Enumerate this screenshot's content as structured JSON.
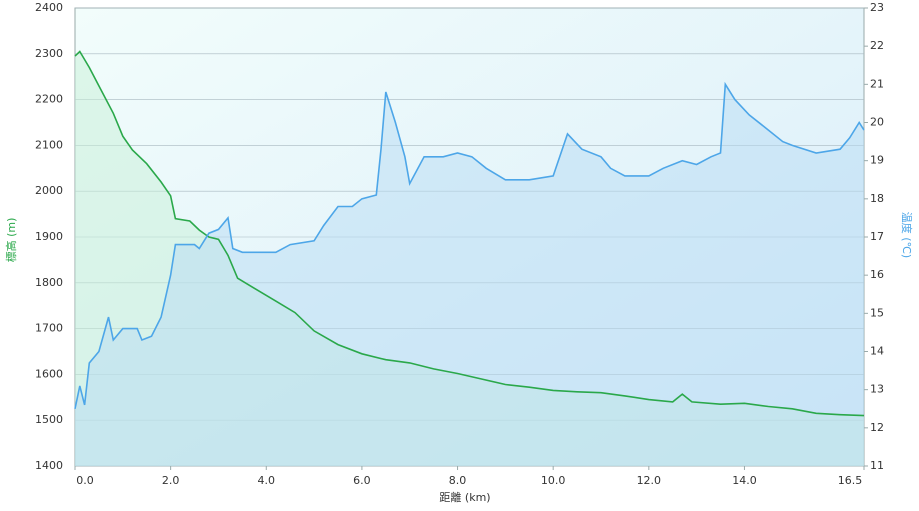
{
  "chart_data": {
    "type": "line",
    "x_label": "距離 (km)",
    "y_label": "標高 (m)",
    "y2_label": "温度 (℃)",
    "xlim": [
      0,
      16.5
    ],
    "xticks": [
      {
        "value": 0,
        "label": "0.0"
      },
      {
        "value": 2,
        "label": "2.0"
      },
      {
        "value": 4,
        "label": "4.0"
      },
      {
        "value": 6,
        "label": "6.0"
      },
      {
        "value": 8,
        "label": "8.0"
      },
      {
        "value": 10,
        "label": "10.0"
      },
      {
        "value": 12,
        "label": "12.0"
      },
      {
        "value": 14,
        "label": "14.0"
      },
      16.5
    ],
    "ylim": [
      1400,
      2400
    ],
    "yticks": [
      1400,
      1500,
      1600,
      1700,
      1800,
      1900,
      2000,
      2100,
      2200,
      2300,
      2400
    ],
    "y2lim": [
      11,
      23
    ],
    "y2ticks": [
      11,
      12,
      13,
      14,
      15,
      16,
      17,
      18,
      19,
      20,
      21,
      22,
      23
    ],
    "grid": true,
    "series": [
      {
        "name": "標高",
        "color": "#2aa84a",
        "axis": "y",
        "fill": "#c8f0d8",
        "x": [
          0,
          0.1,
          0.3,
          0.5,
          0.8,
          1.0,
          1.2,
          1.5,
          1.8,
          2.0,
          2.1,
          2.4,
          2.6,
          2.8,
          3.0,
          3.2,
          3.4,
          3.8,
          4.2,
          4.6,
          5.0,
          5.5,
          6.0,
          6.5,
          7.0,
          7.5,
          8.0,
          8.5,
          9.0,
          9.5,
          10.0,
          10.5,
          11.0,
          11.5,
          12.0,
          12.5,
          12.7,
          12.9,
          13.5,
          14.0,
          14.5,
          15.0,
          15.5,
          16.0,
          16.5
        ],
        "values": [
          2295,
          2305,
          2270,
          2230,
          2170,
          2120,
          2090,
          2060,
          2020,
          1990,
          1940,
          1935,
          1915,
          1900,
          1895,
          1860,
          1810,
          1785,
          1760,
          1735,
          1695,
          1665,
          1645,
          1632,
          1625,
          1612,
          1602,
          1590,
          1578,
          1572,
          1565,
          1562,
          1560,
          1553,
          1545,
          1540,
          1557,
          1540,
          1535,
          1537,
          1530,
          1525,
          1515,
          1512,
          1510
        ]
      },
      {
        "name": "温度",
        "color": "#4da6e8",
        "axis": "y2",
        "fill": "#b8dcf4",
        "x": [
          0,
          0.1,
          0.2,
          0.3,
          0.5,
          0.7,
          0.8,
          1.0,
          1.3,
          1.4,
          1.6,
          1.8,
          2.0,
          2.1,
          2.5,
          2.6,
          2.8,
          3.0,
          3.2,
          3.3,
          3.5,
          4.0,
          4.2,
          4.5,
          5.0,
          5.2,
          5.5,
          5.8,
          6.0,
          6.3,
          6.4,
          6.5,
          6.7,
          6.9,
          7.0,
          7.3,
          7.7,
          8.0,
          8.3,
          8.6,
          9.0,
          9.5,
          10.0,
          10.3,
          10.6,
          11.0,
          11.2,
          11.5,
          12.0,
          12.3,
          12.7,
          13.0,
          13.3,
          13.5,
          13.6,
          13.8,
          14.1,
          14.5,
          14.8,
          15.0,
          15.5,
          16.0,
          16.2,
          16.4,
          16.5
        ],
        "values": [
          12.5,
          13.1,
          12.6,
          13.7,
          14.0,
          14.9,
          14.3,
          14.6,
          14.6,
          14.3,
          14.4,
          14.9,
          16.0,
          16.8,
          16.8,
          16.7,
          17.1,
          17.2,
          17.5,
          16.7,
          16.6,
          16.6,
          16.6,
          16.8,
          16.9,
          17.3,
          17.8,
          17.8,
          18.0,
          18.1,
          19.3,
          20.8,
          20.0,
          19.1,
          18.4,
          19.1,
          19.1,
          19.2,
          19.1,
          18.8,
          18.5,
          18.5,
          18.6,
          19.7,
          19.3,
          19.1,
          18.8,
          18.6,
          18.6,
          18.8,
          19.0,
          18.9,
          19.1,
          19.2,
          21.0,
          20.6,
          20.2,
          19.8,
          19.5,
          19.4,
          19.2,
          19.3,
          19.6,
          20.0,
          19.8
        ]
      }
    ]
  }
}
